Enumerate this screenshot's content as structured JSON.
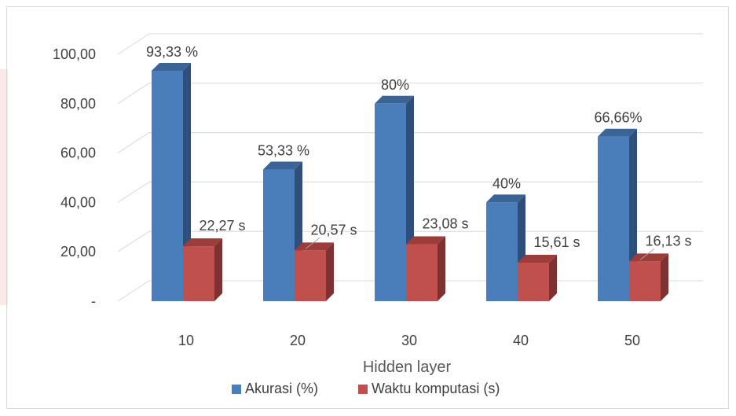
{
  "chart_data": {
    "type": "bar",
    "categories": [
      "10",
      "20",
      "30",
      "40",
      "50"
    ],
    "series": [
      {
        "name": "Akurasi (%)",
        "color": "#4a7ebb",
        "side_color": "#2f4f7a",
        "top_color": "#3b6496",
        "values": [
          93.33,
          53.33,
          80,
          40,
          66.66
        ],
        "labels": [
          "93,33 %",
          "53,33 %",
          "80%",
          "40%",
          "66,66%"
        ]
      },
      {
        "name": "Waktu komputasi (s)",
        "color": "#c0504d",
        "side_color": "#7d3130",
        "top_color": "#9b3d3b",
        "values": [
          22.27,
          20.57,
          23.08,
          15.61,
          16.13
        ],
        "labels": [
          "22,27 s",
          "20,57 s",
          "23,08 s",
          "15,61 s",
          "16,13 s"
        ]
      }
    ],
    "y_ticks": [
      {
        "value": 0,
        "label": "-"
      },
      {
        "value": 20,
        "label": "20,00"
      },
      {
        "value": 40,
        "label": "40,00"
      },
      {
        "value": 60,
        "label": "60,00"
      },
      {
        "value": 80,
        "label": "80,00"
      },
      {
        "value": 100,
        "label": "100,00"
      }
    ],
    "ylim": [
      0,
      100
    ],
    "xlabel": "Hidden layer",
    "ylabel": "",
    "title": "",
    "grid": true,
    "legend_position": "bottom",
    "projection": "3d-column"
  }
}
